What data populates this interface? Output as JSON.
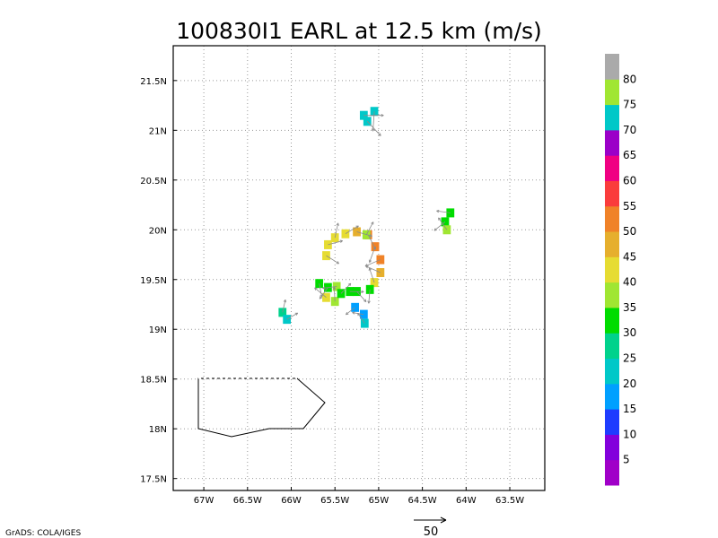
{
  "chart_data": {
    "type": "heatmap",
    "title": "100830I1 EARL at 12.5 km (m/s)",
    "xlabel": "",
    "ylabel": "",
    "xlim": [
      -67.35,
      -63.1
    ],
    "ylim": [
      17.38,
      21.85
    ],
    "grid": true,
    "x_ticks": [
      {
        "v": -67.0,
        "label": "67W"
      },
      {
        "v": -66.5,
        "label": "66.5W"
      },
      {
        "v": -66.0,
        "label": "66W"
      },
      {
        "v": -65.5,
        "label": "65.5W"
      },
      {
        "v": -65.0,
        "label": "65W"
      },
      {
        "v": -64.5,
        "label": "64.5W"
      },
      {
        "v": -64.0,
        "label": "64W"
      },
      {
        "v": -63.5,
        "label": "63.5W"
      }
    ],
    "y_ticks": [
      {
        "v": 17.5,
        "label": "17.5N"
      },
      {
        "v": 18.0,
        "label": "18N"
      },
      {
        "v": 18.5,
        "label": "18.5N"
      },
      {
        "v": 19.0,
        "label": "19N"
      },
      {
        "v": 19.5,
        "label": "19.5N"
      },
      {
        "v": 20.0,
        "label": "20N"
      },
      {
        "v": 20.5,
        "label": "20.5N"
      },
      {
        "v": 21.0,
        "label": "21N"
      },
      {
        "v": 21.5,
        "label": "21.5N"
      }
    ],
    "colorbar": {
      "labels": [
        "5",
        "10",
        "15",
        "20",
        "25",
        "30",
        "35",
        "40",
        "45",
        "50",
        "55",
        "60",
        "65",
        "70",
        "75",
        "80"
      ],
      "colors": [
        "#a000c8",
        "#8200dc",
        "#1e3cff",
        "#00a0ff",
        "#00c8c8",
        "#00d28c",
        "#00dc00",
        "#a0e632",
        "#e6dc32",
        "#e6af2d",
        "#f08228",
        "#fa3c3c",
        "#f00082",
        "#9b00c8",
        "#00c8c8",
        "#a0e632",
        "#aaaaaa"
      ]
    },
    "cells": [
      {
        "lon": -65.17,
        "lat": 21.15,
        "v": 72
      },
      {
        "lon": -65.13,
        "lat": 21.09,
        "v": 72
      },
      {
        "lon": -65.05,
        "lat": 21.19,
        "v": 72
      },
      {
        "lon": -64.24,
        "lat": 20.08,
        "v": 33
      },
      {
        "lon": -64.18,
        "lat": 20.17,
        "v": 33
      },
      {
        "lon": -64.22,
        "lat": 20.0,
        "v": 38
      },
      {
        "lon": -65.5,
        "lat": 19.92,
        "v": 40
      },
      {
        "lon": -65.38,
        "lat": 19.96,
        "v": 42
      },
      {
        "lon": -65.25,
        "lat": 19.98,
        "v": 46
      },
      {
        "lon": -65.12,
        "lat": 19.95,
        "v": 50
      },
      {
        "lon": -65.04,
        "lat": 19.83,
        "v": 52
      },
      {
        "lon": -64.98,
        "lat": 19.7,
        "v": 50
      },
      {
        "lon": -64.98,
        "lat": 19.57,
        "v": 47
      },
      {
        "lon": -65.05,
        "lat": 19.47,
        "v": 42
      },
      {
        "lon": -65.14,
        "lat": 19.95,
        "v": 37
      },
      {
        "lon": -65.58,
        "lat": 19.85,
        "v": 41
      },
      {
        "lon": -65.6,
        "lat": 19.74,
        "v": 40
      },
      {
        "lon": -65.68,
        "lat": 19.46,
        "v": 33
      },
      {
        "lon": -65.58,
        "lat": 19.42,
        "v": 34
      },
      {
        "lon": -65.48,
        "lat": 19.43,
        "v": 35
      },
      {
        "lon": -65.6,
        "lat": 19.32,
        "v": 41
      },
      {
        "lon": -65.5,
        "lat": 19.28,
        "v": 37
      },
      {
        "lon": -65.43,
        "lat": 19.36,
        "v": 33
      },
      {
        "lon": -65.33,
        "lat": 19.38,
        "v": 33
      },
      {
        "lon": -65.25,
        "lat": 19.38,
        "v": 33
      },
      {
        "lon": -65.1,
        "lat": 19.4,
        "v": 33
      },
      {
        "lon": -65.27,
        "lat": 19.22,
        "v": 18
      },
      {
        "lon": -65.17,
        "lat": 19.15,
        "v": 18
      },
      {
        "lon": -65.16,
        "lat": 19.06,
        "v": 22
      },
      {
        "lon": -66.1,
        "lat": 19.17,
        "v": 27
      },
      {
        "lon": -66.05,
        "lat": 19.1,
        "v": 24
      }
    ]
  },
  "credit": "GrADS: COLA/IGES",
  "ref_vector_label": "50"
}
